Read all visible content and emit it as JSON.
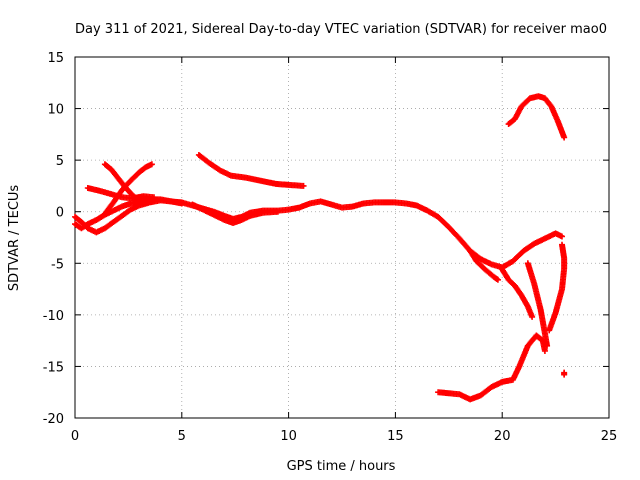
{
  "chart_data": {
    "type": "scatter",
    "title": "Day 311 of 2021, Sidereal Day-to-day VTEC variation (SDTVAR) for receiver mao0",
    "xlabel": "GPS time / hours",
    "ylabel": "SDTVAR / TECUs",
    "xlim": [
      0,
      25
    ],
    "ylim": [
      -20,
      15
    ],
    "xticks": [
      0,
      5,
      10,
      15,
      20,
      25
    ],
    "yticks": [
      -20,
      -15,
      -10,
      -5,
      0,
      5,
      10,
      15
    ],
    "xtick_labels": [
      "0",
      "5",
      "10",
      "15",
      "20",
      "25"
    ],
    "ytick_labels": [
      "-20",
      "-15",
      "-10",
      "-5",
      "0",
      "5",
      "10",
      "15"
    ],
    "grid": true,
    "marker": "+",
    "color": "#ff0000",
    "series": [
      {
        "name": "main-track",
        "points": [
          [
            0,
            -1.2
          ],
          [
            0.3,
            -1.6
          ],
          [
            0.6,
            -1.2
          ],
          [
            1.0,
            -0.8
          ],
          [
            1.4,
            -0.3
          ],
          [
            1.8,
            0.1
          ],
          [
            2.2,
            0.5
          ],
          [
            2.6,
            0.8
          ],
          [
            3.0,
            1.0
          ],
          [
            3.5,
            1.2
          ],
          [
            4.0,
            1.2
          ],
          [
            4.5,
            1.0
          ],
          [
            5.0,
            0.9
          ],
          [
            5.5,
            0.6
          ],
          [
            6.0,
            0.3
          ],
          [
            6.5,
            0.0
          ],
          [
            7.0,
            -0.4
          ],
          [
            7.4,
            -0.7
          ],
          [
            7.8,
            -0.5
          ],
          [
            8.2,
            -0.1
          ],
          [
            8.8,
            0.1
          ],
          [
            9.5,
            0.1
          ],
          [
            10.0,
            0.2
          ],
          [
            10.5,
            0.4
          ],
          [
            11.0,
            0.8
          ],
          [
            11.5,
            1.0
          ],
          [
            12.0,
            0.7
          ],
          [
            12.5,
            0.4
          ],
          [
            13.0,
            0.5
          ],
          [
            13.5,
            0.8
          ],
          [
            14.0,
            0.9
          ],
          [
            14.5,
            0.9
          ],
          [
            15.0,
            0.9
          ],
          [
            15.5,
            0.8
          ],
          [
            16.0,
            0.6
          ],
          [
            16.5,
            0.1
          ],
          [
            17.0,
            -0.5
          ],
          [
            17.5,
            -1.5
          ],
          [
            18.0,
            -2.6
          ],
          [
            18.5,
            -3.8
          ],
          [
            19.0,
            -4.6
          ],
          [
            19.5,
            -5.1
          ],
          [
            20.0,
            -5.4
          ],
          [
            20.5,
            -4.8
          ],
          [
            21.0,
            -3.8
          ],
          [
            21.5,
            -3.1
          ],
          [
            22.0,
            -2.6
          ],
          [
            22.5,
            -2.1
          ],
          [
            22.8,
            -2.4
          ]
        ]
      },
      {
        "name": "early-lower-band",
        "points": [
          [
            0,
            -0.5
          ],
          [
            0.3,
            -1.0
          ],
          [
            0.6,
            -1.6
          ],
          [
            1.0,
            -2.0
          ],
          [
            1.4,
            -1.6
          ],
          [
            1.8,
            -1.0
          ],
          [
            2.2,
            -0.4
          ],
          [
            2.6,
            0.2
          ],
          [
            3.0,
            0.6
          ],
          [
            3.5,
            0.9
          ],
          [
            4.0,
            1.1
          ],
          [
            4.5,
            1.0
          ],
          [
            5.0,
            0.8
          ]
        ]
      },
      {
        "name": "early-upper-branch",
        "points": [
          [
            0.6,
            2.3
          ],
          [
            1.2,
            2.0
          ],
          [
            1.7,
            1.7
          ],
          [
            2.2,
            1.4
          ],
          [
            2.7,
            1.3
          ],
          [
            3.2,
            1.5
          ],
          [
            3.7,
            1.4
          ]
        ]
      },
      {
        "name": "early-rising-arc",
        "points": [
          [
            1.4,
            -0.2
          ],
          [
            1.8,
            0.9
          ],
          [
            2.2,
            2.1
          ],
          [
            2.6,
            3.0
          ],
          [
            3.0,
            3.8
          ],
          [
            3.3,
            4.3
          ],
          [
            3.6,
            4.6
          ]
        ]
      },
      {
        "name": "early-falling-arc",
        "points": [
          [
            1.4,
            4.6
          ],
          [
            1.7,
            4.1
          ],
          [
            2.0,
            3.3
          ],
          [
            2.3,
            2.5
          ],
          [
            2.6,
            1.8
          ],
          [
            2.9,
            1.2
          ],
          [
            3.2,
            0.8
          ]
        ]
      },
      {
        "name": "lower-drop-band",
        "points": [
          [
            5.5,
            0.7
          ],
          [
            6.0,
            0.2
          ],
          [
            6.5,
            -0.3
          ],
          [
            7.0,
            -0.8
          ],
          [
            7.4,
            -1.1
          ],
          [
            7.8,
            -0.8
          ],
          [
            8.2,
            -0.4
          ],
          [
            8.8,
            -0.1
          ],
          [
            9.5,
            0.0
          ]
        ]
      },
      {
        "name": "mid-upper-arc",
        "points": [
          [
            5.8,
            5.5
          ],
          [
            6.3,
            4.7
          ],
          [
            6.8,
            4.0
          ],
          [
            7.3,
            3.5
          ],
          [
            8.0,
            3.3
          ],
          [
            8.7,
            3.0
          ],
          [
            9.4,
            2.7
          ],
          [
            10.0,
            2.6
          ],
          [
            10.7,
            2.5
          ]
        ]
      },
      {
        "name": "late-top-arc",
        "points": [
          [
            20.3,
            8.5
          ],
          [
            20.6,
            9.0
          ],
          [
            20.9,
            10.2
          ],
          [
            21.3,
            11.0
          ],
          [
            21.7,
            11.2
          ],
          [
            22.0,
            11.0
          ],
          [
            22.3,
            10.2
          ],
          [
            22.6,
            8.8
          ],
          [
            22.9,
            7.2
          ]
        ]
      },
      {
        "name": "late-bottom-arc",
        "points": [
          [
            17.0,
            -17.5
          ],
          [
            17.5,
            -17.6
          ],
          [
            18.0,
            -17.7
          ],
          [
            18.5,
            -18.2
          ],
          [
            19.0,
            -17.8
          ],
          [
            19.5,
            -17.0
          ],
          [
            20.0,
            -16.5
          ],
          [
            20.5,
            -16.3
          ],
          [
            20.8,
            -15.0
          ],
          [
            21.2,
            -13.0
          ],
          [
            21.6,
            -12.0
          ],
          [
            21.9,
            -12.5
          ],
          [
            22.0,
            -13.5
          ]
        ]
      },
      {
        "name": "late-left-dip",
        "points": [
          [
            18.5,
            -3.8
          ],
          [
            18.8,
            -4.8
          ],
          [
            19.2,
            -5.6
          ],
          [
            19.6,
            -6.3
          ],
          [
            19.8,
            -6.6
          ]
        ]
      },
      {
        "name": "late-middle-dip",
        "points": [
          [
            20.0,
            -5.6
          ],
          [
            20.3,
            -6.6
          ],
          [
            20.6,
            -7.2
          ],
          [
            20.9,
            -8.1
          ],
          [
            21.2,
            -9.2
          ],
          [
            21.4,
            -10.2
          ]
        ]
      },
      {
        "name": "late-slanted-dip",
        "points": [
          [
            21.2,
            -5.0
          ],
          [
            21.5,
            -7.0
          ],
          [
            21.8,
            -9.5
          ],
          [
            22.0,
            -11.8
          ],
          [
            22.1,
            -13.0
          ]
        ]
      },
      {
        "name": "late-right-arc",
        "points": [
          [
            22.2,
            -11.5
          ],
          [
            22.5,
            -9.8
          ],
          [
            22.8,
            -7.5
          ],
          [
            22.9,
            -5.5
          ],
          [
            22.9,
            -4.5
          ],
          [
            22.8,
            -3.2
          ]
        ]
      },
      {
        "name": "late-isolated-point",
        "points": [
          [
            22.9,
            -15.6
          ],
          [
            22.9,
            -15.8
          ]
        ]
      }
    ]
  }
}
